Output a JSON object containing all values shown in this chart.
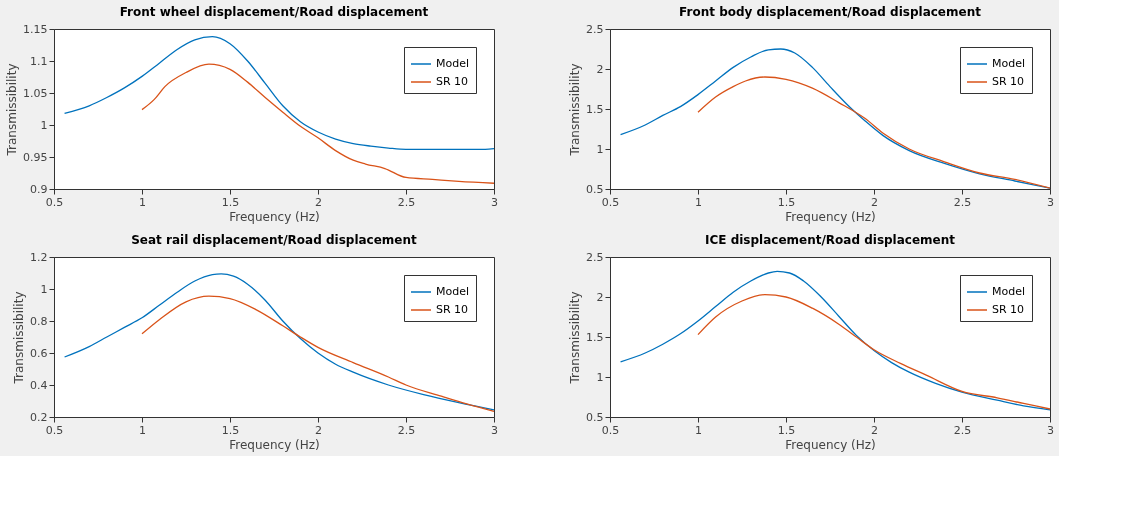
{
  "chart_data": [
    {
      "type": "line",
      "title": "Front wheel displacement/Road displacement",
      "xlabel": "Frequency (Hz)",
      "ylabel": "Transmissibility",
      "xlim": [
        0.5,
        3
      ],
      "xticks": [
        0.5,
        1,
        1.5,
        2,
        2.5,
        3
      ],
      "ylim": [
        0.9,
        1.15
      ],
      "yticks": [
        0.9,
        0.95,
        1,
        1.05,
        1.1,
        1.15
      ],
      "grid": false,
      "legend": "top right",
      "series": [
        {
          "name": "Model",
          "color": "#0072bd",
          "x": [
            0.56,
            0.7,
            0.8,
            0.9,
            1.0,
            1.1,
            1.2,
            1.3,
            1.4,
            1.5,
            1.6,
            1.7,
            1.8,
            1.9,
            2.0,
            2.1,
            2.2,
            2.3,
            2.4,
            2.5,
            2.75,
            2.95,
            3.0
          ],
          "values": [
            1.018,
            1.03,
            1.043,
            1.058,
            1.076,
            1.097,
            1.118,
            1.133,
            1.138,
            1.127,
            1.1,
            1.065,
            1.03,
            1.005,
            0.989,
            0.978,
            0.971,
            0.967,
            0.964,
            0.962,
            0.962,
            0.962,
            0.963
          ]
        },
        {
          "name": "SR 10",
          "color": "#d95319",
          "x": [
            1.0,
            1.07,
            1.13,
            1.25,
            1.38,
            1.5,
            1.6,
            1.7,
            1.8,
            1.9,
            2.0,
            2.1,
            2.2,
            2.27,
            2.38,
            2.5,
            2.65,
            2.8,
            3.0
          ],
          "values": [
            1.024,
            1.04,
            1.06,
            1.082,
            1.095,
            1.087,
            1.067,
            1.043,
            1.02,
            0.998,
            0.98,
            0.96,
            0.945,
            0.939,
            0.932,
            0.918,
            0.915,
            0.912,
            0.909
          ]
        }
      ]
    },
    {
      "type": "line",
      "title": "Front body displacement/Road displacement",
      "xlabel": "Frequency (Hz)",
      "ylabel": "Transmissibility",
      "xlim": [
        0.5,
        3
      ],
      "xticks": [
        0.5,
        1,
        1.5,
        2,
        2.5,
        3
      ],
      "ylim": [
        0.5,
        2.5
      ],
      "yticks": [
        0.5,
        1,
        1.5,
        2,
        2.5
      ],
      "grid": false,
      "legend": "top right",
      "series": [
        {
          "name": "Model",
          "color": "#0072bd",
          "x": [
            0.56,
            0.7,
            0.8,
            0.9,
            1.0,
            1.1,
            1.2,
            1.3,
            1.4,
            1.47,
            1.55,
            1.65,
            1.75,
            1.85,
            1.95,
            2.05,
            2.2,
            2.4,
            2.6,
            2.8,
            3.0
          ],
          "values": [
            1.18,
            1.3,
            1.42,
            1.53,
            1.68,
            1.85,
            2.02,
            2.15,
            2.24,
            2.25,
            2.2,
            2.02,
            1.78,
            1.55,
            1.35,
            1.17,
            0.98,
            0.82,
            0.69,
            0.6,
            0.51
          ]
        },
        {
          "name": "SR 10",
          "color": "#d95319",
          "x": [
            1.0,
            1.1,
            1.2,
            1.27,
            1.38,
            1.5,
            1.65,
            1.8,
            1.95,
            2.05,
            2.2,
            2.4,
            2.6,
            2.8,
            3.0
          ],
          "values": [
            1.46,
            1.65,
            1.78,
            1.85,
            1.9,
            1.87,
            1.76,
            1.58,
            1.38,
            1.2,
            1.0,
            0.84,
            0.7,
            0.62,
            0.51
          ]
        }
      ]
    },
    {
      "type": "line",
      "title": "Seat rail displacement/Road displacement",
      "xlabel": "Frequency (Hz)",
      "ylabel": "Transmissibility",
      "xlim": [
        0.5,
        3
      ],
      "xticks": [
        0.5,
        1,
        1.5,
        2,
        2.5,
        3
      ],
      "ylim": [
        0.2,
        1.2
      ],
      "yticks": [
        0.2,
        0.4,
        0.6,
        0.8,
        1,
        1.2
      ],
      "grid": false,
      "legend": "top right",
      "series": [
        {
          "name": "Model",
          "color": "#0072bd",
          "x": [
            0.56,
            0.7,
            0.8,
            0.9,
            1.0,
            1.1,
            1.2,
            1.3,
            1.4,
            1.45,
            1.52,
            1.6,
            1.7,
            1.8,
            1.9,
            2.0,
            2.1,
            2.2,
            2.4,
            2.6,
            2.8,
            3.0
          ],
          "values": [
            0.575,
            0.64,
            0.7,
            0.76,
            0.82,
            0.9,
            0.98,
            1.05,
            1.09,
            1.095,
            1.08,
            1.03,
            0.93,
            0.8,
            0.69,
            0.6,
            0.53,
            0.48,
            0.4,
            0.34,
            0.29,
            0.245
          ]
        },
        {
          "name": "SR 10",
          "color": "#d95319",
          "x": [
            1.0,
            1.1,
            1.25,
            1.38,
            1.5,
            1.65,
            1.8,
            1.9,
            2.0,
            2.2,
            2.4,
            2.5,
            2.7,
            2.85,
            3.0
          ],
          "values": [
            0.72,
            0.81,
            0.92,
            0.955,
            0.94,
            0.87,
            0.77,
            0.7,
            0.635,
            0.54,
            0.45,
            0.4,
            0.33,
            0.28,
            0.235
          ]
        }
      ]
    },
    {
      "type": "line",
      "title": "ICE displacement/Road displacement",
      "xlabel": "Frequency (Hz)",
      "ylabel": "Transmissibility",
      "xlim": [
        0.5,
        3
      ],
      "xticks": [
        0.5,
        1,
        1.5,
        2,
        2.5,
        3
      ],
      "ylim": [
        0.5,
        2.5
      ],
      "yticks": [
        0.5,
        1,
        1.5,
        2,
        2.5
      ],
      "grid": false,
      "legend": "top right",
      "series": [
        {
          "name": "Model",
          "color": "#0072bd",
          "x": [
            0.56,
            0.7,
            0.8,
            0.9,
            1.0,
            1.1,
            1.2,
            1.3,
            1.4,
            1.45,
            1.52,
            1.6,
            1.7,
            1.8,
            1.9,
            2.0,
            2.1,
            2.2,
            2.35,
            2.5,
            2.7,
            2.85,
            3.0
          ],
          "values": [
            1.19,
            1.3,
            1.41,
            1.54,
            1.7,
            1.88,
            2.06,
            2.2,
            2.3,
            2.32,
            2.3,
            2.2,
            2.0,
            1.76,
            1.52,
            1.33,
            1.18,
            1.06,
            0.92,
            0.81,
            0.71,
            0.64,
            0.59
          ]
        },
        {
          "name": "SR 10",
          "color": "#d95319",
          "x": [
            1.0,
            1.1,
            1.25,
            1.38,
            1.5,
            1.65,
            1.8,
            1.9,
            2.0,
            2.15,
            2.3,
            2.5,
            2.7,
            2.85,
            3.0
          ],
          "values": [
            1.53,
            1.75,
            1.95,
            2.03,
            2.0,
            1.86,
            1.66,
            1.5,
            1.34,
            1.17,
            1.02,
            0.82,
            0.74,
            0.67,
            0.6
          ]
        }
      ]
    }
  ]
}
